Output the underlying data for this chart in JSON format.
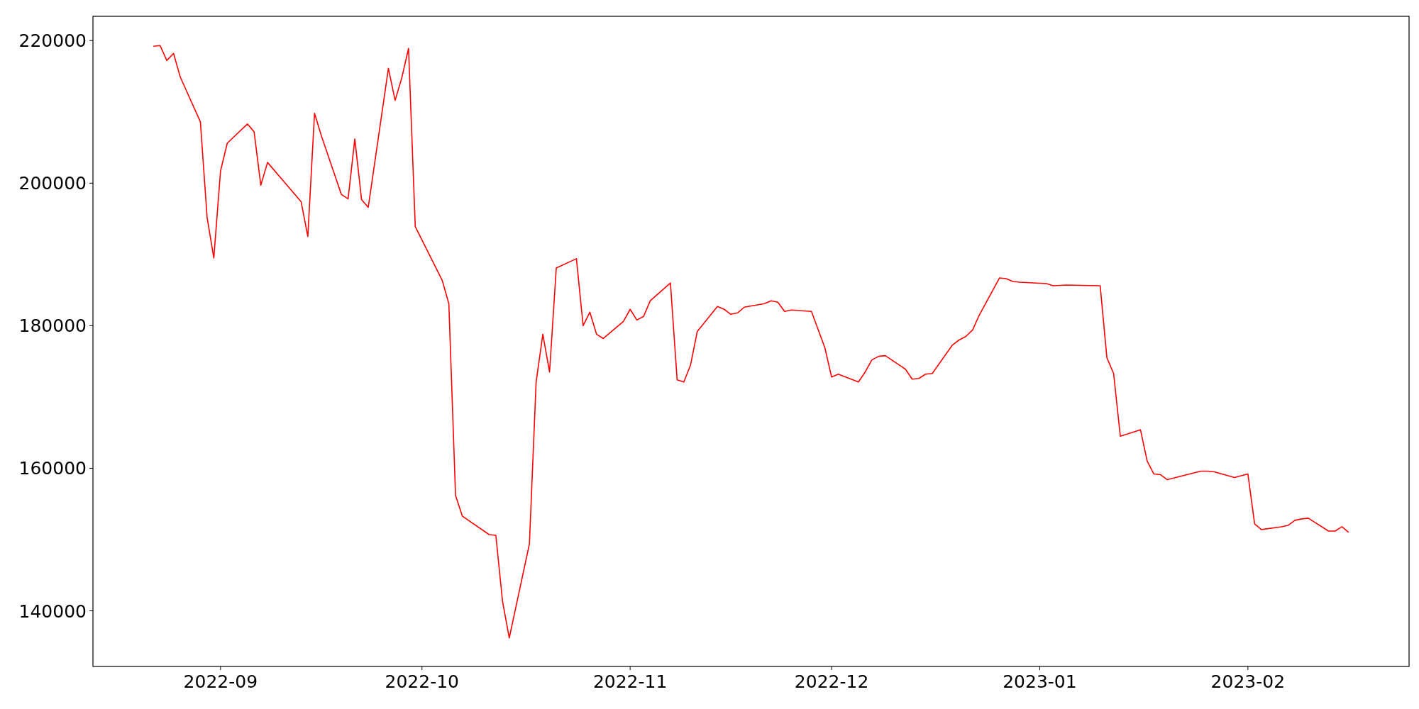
{
  "chart_data": {
    "type": "line",
    "xlim": [
      "2022-08-13",
      "2023-02-25"
    ],
    "ylim": [
      132200,
      223400
    ],
    "xticks": [
      {
        "value": "2022-09-01",
        "label": "2022-09"
      },
      {
        "value": "2022-10-01",
        "label": "2022-10"
      },
      {
        "value": "2022-11-01",
        "label": "2022-11"
      },
      {
        "value": "2022-12-01",
        "label": "2022-12"
      },
      {
        "value": "2023-01-01",
        "label": "2023-01"
      },
      {
        "value": "2023-02-01",
        "label": "2023-02"
      }
    ],
    "yticks": [
      140000,
      160000,
      180000,
      200000,
      220000
    ],
    "grid": false,
    "marker": "none",
    "line_style": "solid",
    "series": [
      {
        "color": "#ff0000",
        "x": [
          "2022-08-22",
          "2022-08-23",
          "2022-08-24",
          "2022-08-25",
          "2022-08-26",
          "2022-08-29",
          "2022-08-30",
          "2022-08-31",
          "2022-09-01",
          "2022-09-02",
          "2022-09-05",
          "2022-09-06",
          "2022-09-07",
          "2022-09-08",
          "2022-09-13",
          "2022-09-14",
          "2022-09-15",
          "2022-09-16",
          "2022-09-19",
          "2022-09-20",
          "2022-09-21",
          "2022-09-22",
          "2022-09-23",
          "2022-09-26",
          "2022-09-27",
          "2022-09-28",
          "2022-09-29",
          "2022-09-30",
          "2022-10-04",
          "2022-10-05",
          "2022-10-06",
          "2022-10-07",
          "2022-10-11",
          "2022-10-12",
          "2022-10-13",
          "2022-10-14",
          "2022-10-17",
          "2022-10-18",
          "2022-10-19",
          "2022-10-20",
          "2022-10-21",
          "2022-10-24",
          "2022-10-25",
          "2022-10-26",
          "2022-10-27",
          "2022-10-28",
          "2022-10-31",
          "2022-11-01",
          "2022-11-02",
          "2022-11-03",
          "2022-11-04",
          "2022-11-07",
          "2022-11-08",
          "2022-11-09",
          "2022-11-10",
          "2022-11-11",
          "2022-11-14",
          "2022-11-15",
          "2022-11-16",
          "2022-11-17",
          "2022-11-18",
          "2022-11-21",
          "2022-11-22",
          "2022-11-23",
          "2022-11-24",
          "2022-11-25",
          "2022-11-28",
          "2022-11-30",
          "2022-12-01",
          "2022-12-02",
          "2022-12-05",
          "2022-12-06",
          "2022-12-07",
          "2022-12-08",
          "2022-12-09",
          "2022-12-12",
          "2022-12-13",
          "2022-12-14",
          "2022-12-15",
          "2022-12-16",
          "2022-12-19",
          "2022-12-20",
          "2022-12-21",
          "2022-12-22",
          "2022-12-23",
          "2022-12-26",
          "2022-12-27",
          "2022-12-28",
          "2022-12-29",
          "2023-01-02",
          "2023-01-03",
          "2023-01-05",
          "2023-01-10",
          "2023-01-11",
          "2023-01-12",
          "2023-01-13",
          "2023-01-16",
          "2023-01-17",
          "2023-01-18",
          "2023-01-19",
          "2023-01-20",
          "2023-01-25",
          "2023-01-26",
          "2023-01-27",
          "2023-01-30",
          "2023-02-01",
          "2023-02-02",
          "2023-02-03",
          "2023-02-06",
          "2023-02-07",
          "2023-02-08",
          "2023-02-09",
          "2023-02-10",
          "2023-02-13",
          "2023-02-14",
          "2023-02-15",
          "2023-02-16"
        ],
        "values": [
          219200,
          219300,
          217200,
          218200,
          214900,
          208600,
          195200,
          189500,
          201700,
          205600,
          208300,
          207200,
          199700,
          202900,
          197400,
          192500,
          209800,
          206700,
          198400,
          197800,
          206200,
          197700,
          196600,
          216100,
          211600,
          214800,
          218900,
          193900,
          186400,
          183100,
          156200,
          153300,
          150700,
          150600,
          141300,
          136200,
          149400,
          172100,
          178800,
          173500,
          188100,
          189400,
          180000,
          181900,
          178800,
          178200,
          180600,
          182300,
          180800,
          181300,
          183500,
          186000,
          172400,
          172100,
          174500,
          179200,
          182700,
          182300,
          181600,
          181800,
          182600,
          183100,
          183500,
          183300,
          182000,
          182200,
          182000,
          176900,
          172800,
          173200,
          172100,
          173500,
          175200,
          175700,
          175800,
          173900,
          172500,
          172600,
          173200,
          173300,
          177300,
          178000,
          178500,
          179400,
          181500,
          186700,
          186600,
          186200,
          186100,
          185900,
          185600,
          185700,
          185600,
          175500,
          173300,
          164500,
          165400,
          161000,
          159200,
          159100,
          158400,
          159600,
          159600,
          159500,
          158700,
          159200,
          152200,
          151400,
          151800,
          152000,
          152700,
          152900,
          153000,
          151200,
          151200,
          151800,
          151000
        ]
      }
    ]
  }
}
